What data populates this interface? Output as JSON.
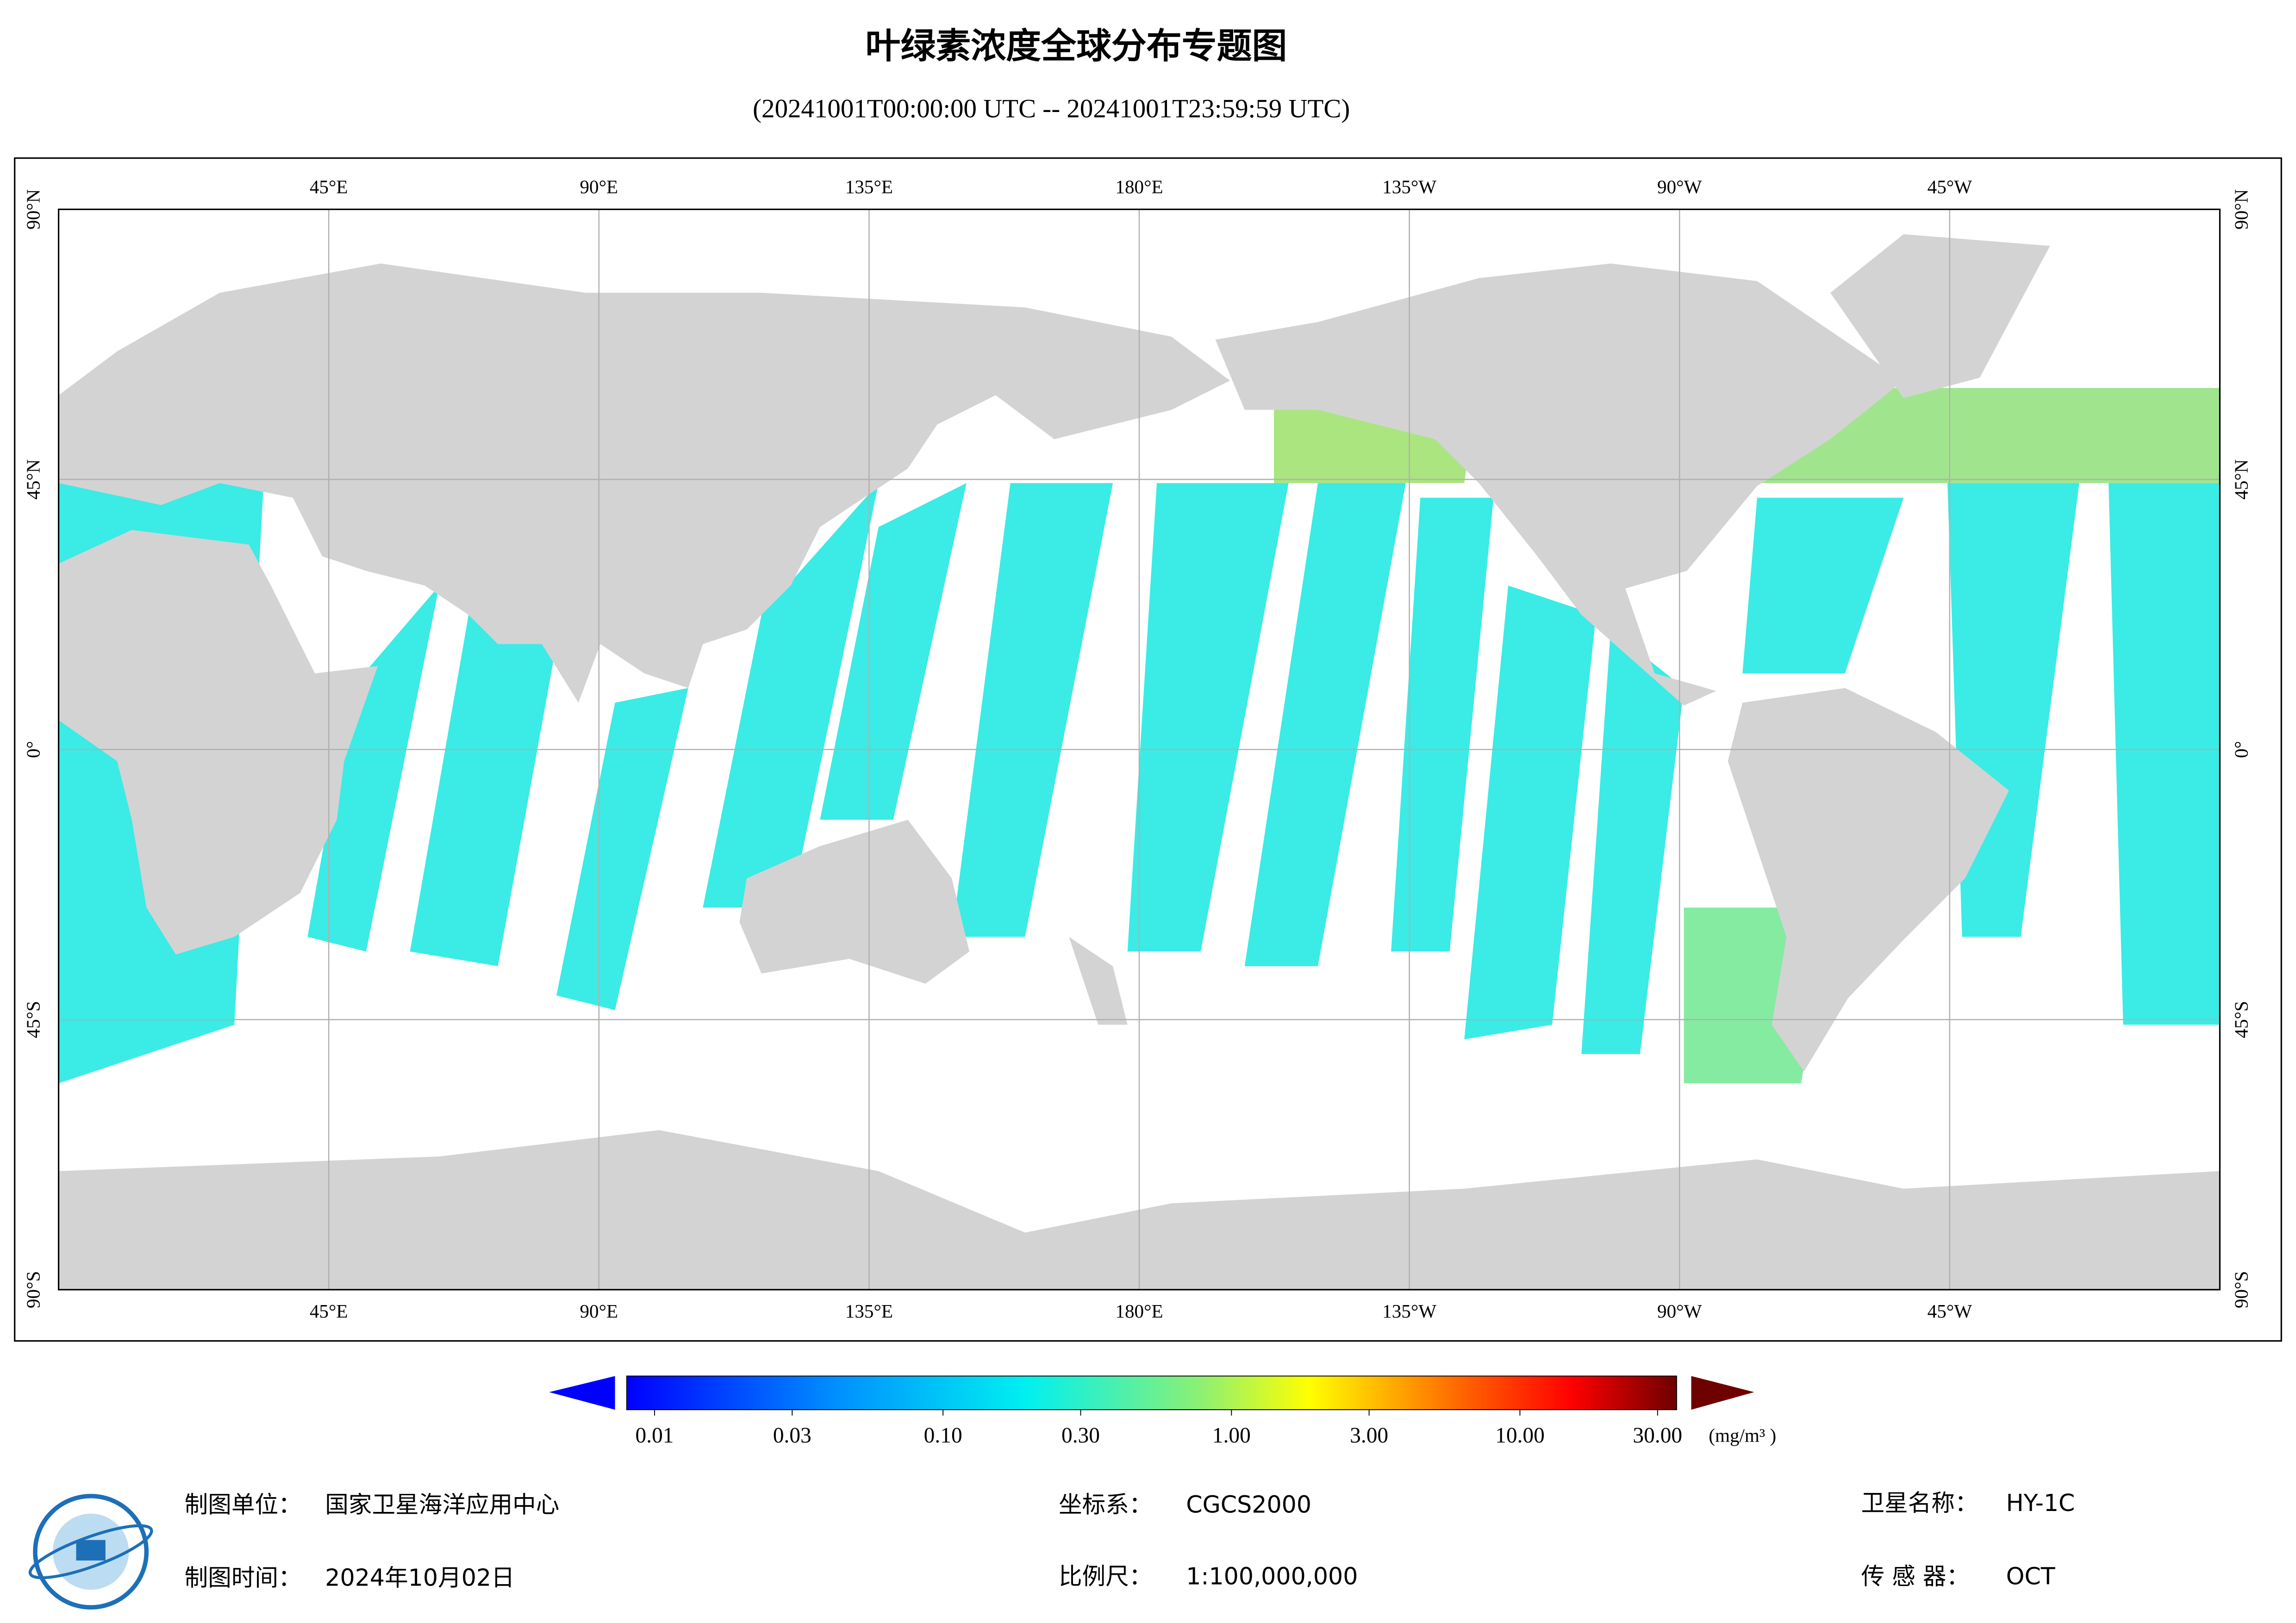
{
  "title": "叶绿素浓度全球分布专题图",
  "subtitle": "(20241001T00:00:00 UTC -- 20241001T23:59:59 UTC)",
  "map": {
    "lon_labels": [
      "45°E",
      "90°E",
      "135°E",
      "180°E",
      "135°W",
      "90°W",
      "45°W"
    ],
    "lat_labels": [
      "90°N",
      "45°N",
      "0°",
      "45°S",
      "90°S"
    ]
  },
  "colorbar": {
    "ticks": [
      {
        "value": 0.01,
        "label": "0.01"
      },
      {
        "value": 0.03,
        "label": "0.03"
      },
      {
        "value": 0.1,
        "label": "0.10"
      },
      {
        "value": 0.3,
        "label": "0.30"
      },
      {
        "value": 1,
        "label": "1.00"
      },
      {
        "value": 3,
        "label": "3.00"
      },
      {
        "value": 10,
        "label": "10.00"
      },
      {
        "value": 30,
        "label": "30.00"
      }
    ],
    "unit": "(mg/m³ )"
  },
  "footer": [
    {
      "label": "制图单位：",
      "value": "国家卫星海洋应用中心"
    },
    {
      "label": "坐标系：",
      "value": "CGCS2000"
    },
    {
      "label": "卫星名称：",
      "value": "HY-1C"
    },
    {
      "label": "制图时间：",
      "value": "2024年10月02日"
    },
    {
      "label": "比例尺：",
      "value": "1:100,000,000"
    },
    {
      "label": "传 感 器：",
      "value": "OCT"
    }
  ]
}
